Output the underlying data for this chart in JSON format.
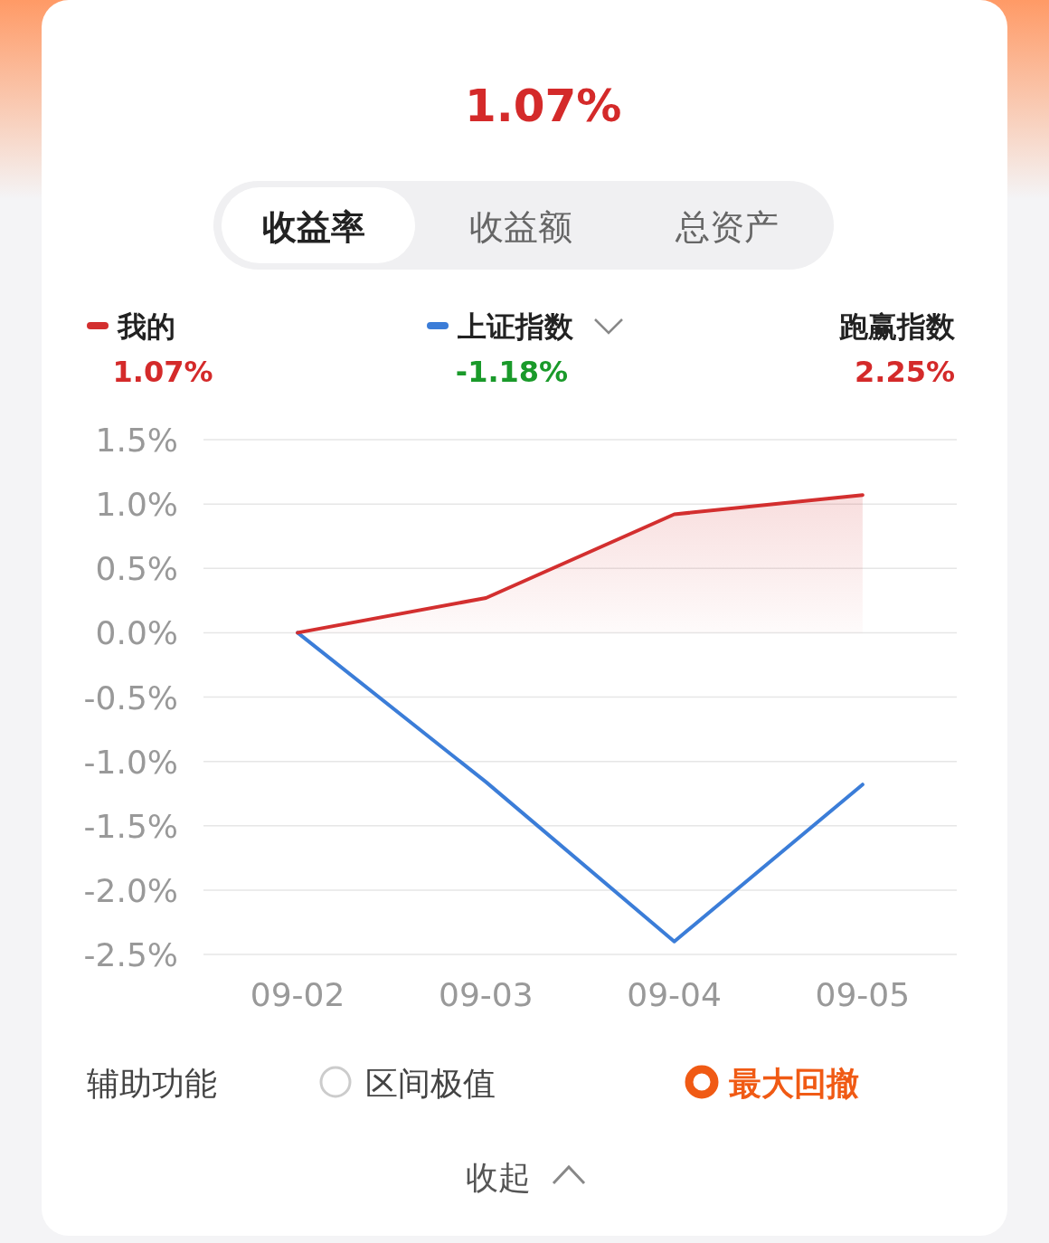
{
  "chart_data": {
    "type": "line",
    "title": "1.07%",
    "categories": [
      "09-02",
      "09-03",
      "09-04",
      "09-05"
    ],
    "series": [
      {
        "name": "我的",
        "type": "area",
        "color": "#d32f2f",
        "values": [
          0,
          0.27,
          0.92,
          1.07
        ]
      },
      {
        "name": "上证指数",
        "type": "line",
        "color": "#3b7dd8",
        "values": [
          0,
          -1.16,
          -2.4,
          -1.18
        ]
      }
    ],
    "ylim": [
      -2.5,
      1.5
    ],
    "yticks": [
      {
        "value": -2.5,
        "label": "-2.5%"
      },
      {
        "value": -2.0,
        "label": "-2.0%"
      },
      {
        "value": -1.5,
        "label": "-1.5%"
      },
      {
        "value": -1.0,
        "label": "-1.0%"
      },
      {
        "value": -0.5,
        "label": "-0.5%"
      },
      {
        "value": 0,
        "label": "0.0%"
      },
      {
        "value": 0.5,
        "label": "0.5%"
      },
      {
        "value": 1.0,
        "label": "1.0%"
      },
      {
        "value": 1.5,
        "label": "1.5%"
      }
    ],
    "grid": "y",
    "legend": "top",
    "marker": "none",
    "line_style": "solid",
    "annotations": [
      "收益率",
      "收益额",
      "总资产",
      "1.07%",
      "-1.18%",
      "跑赢指数",
      "2.25%",
      "辅助功能",
      "区间极值",
      "最大回撤",
      "收起"
    ]
  }
}
